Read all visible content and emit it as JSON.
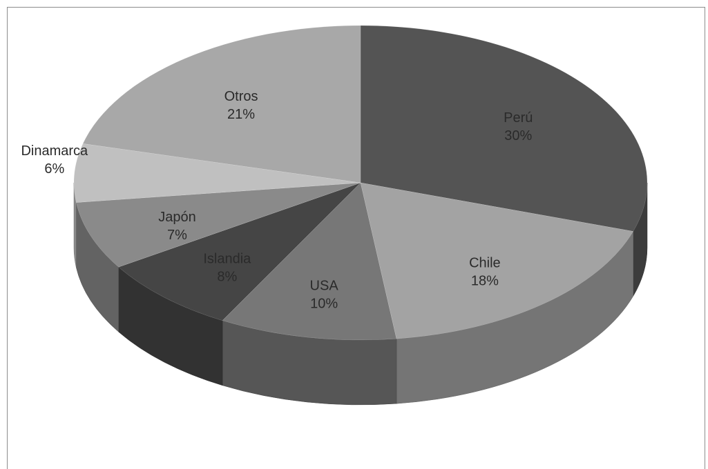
{
  "chart_data": {
    "type": "pie",
    "three_d": true,
    "categories": [
      "Perú",
      "Chile",
      "USA",
      "Islandia",
      "Japón",
      "Dinamarca",
      "Otros"
    ],
    "values": [
      30,
      18,
      10,
      8,
      7,
      6,
      21
    ],
    "value_labels": [
      "30%",
      "18%",
      "10%",
      "8%",
      "7%",
      "6%",
      "21%"
    ],
    "colors": [
      "#545454",
      "#a3a3a3",
      "#777777",
      "#454545",
      "#8a8a8a",
      "#c0c0c0",
      "#a8a8a8"
    ]
  }
}
